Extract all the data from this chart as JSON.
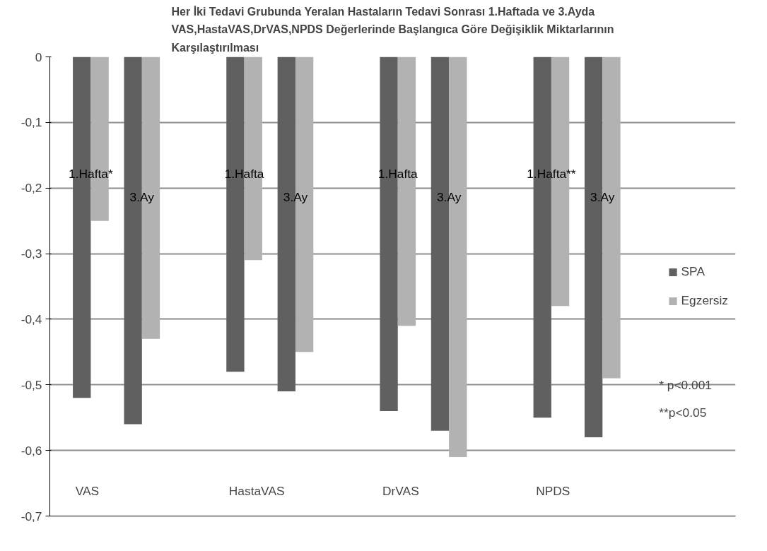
{
  "chart_data": {
    "type": "bar",
    "title": "Her İki Tedavi Grubunda Yeralan Hastaların Tedavi Sonrası 1.Haftada ve 3.Ayda VAS,HastaVAS,DrVAS,NPDS Değerlerinde Başlangıca Göre Değişiklik Miktarlarının Karşılaştırılması",
    "categories": [
      "1.Hafta*",
      "3.Ay",
      "1.Hafta",
      "3.Ay",
      "1.Hafta",
      "3.Ay",
      "1.Hafta**",
      "3.Ay"
    ],
    "series": [
      {
        "name": "SPA",
        "color": "#606060",
        "values": [
          -0.52,
          -0.56,
          -0.48,
          -0.51,
          -0.54,
          -0.57,
          -0.55,
          -0.58
        ]
      },
      {
        "name": "Egzersiz",
        "color": "#b2b2b2",
        "values": [
          -0.25,
          -0.43,
          -0.31,
          -0.45,
          -0.41,
          -0.61,
          -0.38,
          -0.49
        ]
      }
    ],
    "annotations": [
      "VAS",
      "HastaVAS",
      "DrVAS",
      "NPDS",
      "*   p<0.001",
      "**p<0.05"
    ],
    "ylim": [
      -0.7,
      0
    ],
    "yticks": [
      {
        "value": 0,
        "label": "0"
      },
      {
        "value": -0.1,
        "label": "-0,1"
      },
      {
        "value": -0.2,
        "label": "-0,2"
      },
      {
        "value": -0.3,
        "label": "-0,3"
      },
      {
        "value": -0.4,
        "label": "-0,4"
      },
      {
        "value": -0.5,
        "label": "-0,5"
      },
      {
        "value": -0.6,
        "label": "-0,6"
      },
      {
        "value": -0.7,
        "label": "-0,7"
      }
    ],
    "grid": "y",
    "legend": "right"
  }
}
